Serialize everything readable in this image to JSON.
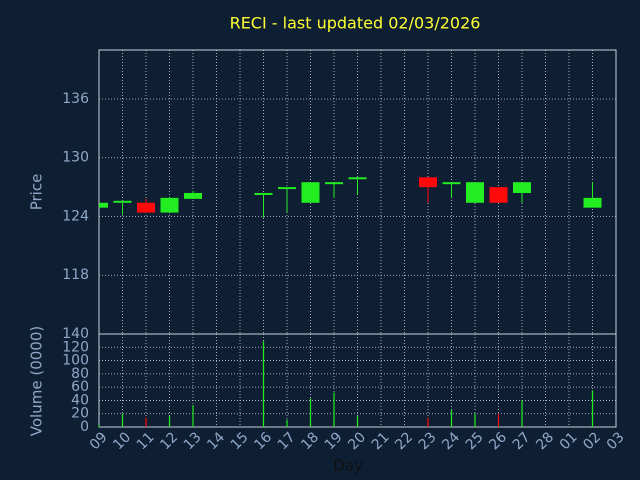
{
  "chart_data": {
    "type": "candlestick",
    "title": "RECI - last updated 02/03/2026",
    "ylabel": "Price",
    "xlabel": "Day",
    "categories": [
      "09",
      "10",
      "11",
      "12",
      "13",
      "14",
      "15",
      "16",
      "17",
      "18",
      "19",
      "20",
      "21",
      "22",
      "23",
      "24",
      "25",
      "26",
      "27",
      "28",
      "01",
      "02",
      "03"
    ],
    "open": [
      124.9,
      125.4,
      125.4,
      124.4,
      125.8,
      null,
      null,
      126.2,
      126.8,
      125.4,
      127.3,
      127.8,
      null,
      null,
      128.0,
      127.3,
      125.4,
      127.0,
      126.4,
      null,
      null,
      124.9,
      null
    ],
    "high": [
      125.4,
      125.6,
      125.8,
      126.0,
      126.6,
      null,
      null,
      126.4,
      127.0,
      127.5,
      127.5,
      128.0,
      null,
      null,
      128.0,
      127.5,
      127.5,
      127.0,
      127.5,
      null,
      null,
      127.5,
      null
    ],
    "low": [
      124.9,
      124.2,
      124.4,
      124.4,
      125.8,
      null,
      null,
      123.9,
      124.4,
      125.4,
      125.9,
      126.2,
      null,
      null,
      125.4,
      125.9,
      125.4,
      125.4,
      125.4,
      null,
      null,
      124.9,
      null
    ],
    "close": [
      125.4,
      125.6,
      124.4,
      125.9,
      126.4,
      null,
      null,
      126.4,
      127.0,
      127.5,
      127.5,
      128.0,
      null,
      null,
      127.0,
      127.5,
      127.5,
      125.4,
      127.5,
      null,
      null,
      125.9,
      null
    ],
    "ylim": [
      112,
      141
    ],
    "yticks": [
      118,
      124,
      130,
      136
    ],
    "up_color": "#22ee22",
    "down_color": "#ff0a0a",
    "grid": true,
    "volume": {
      "ylabel": "Volume (0000)",
      "values": [
        3,
        20,
        14,
        17,
        33,
        null,
        null,
        129,
        11,
        43,
        52,
        17,
        null,
        null,
        14,
        26,
        20,
        20,
        40,
        null,
        null,
        55,
        null
      ],
      "ylim": [
        0,
        140
      ],
      "yticks": [
        0,
        20,
        40,
        60,
        80,
        100,
        120,
        140
      ]
    }
  }
}
